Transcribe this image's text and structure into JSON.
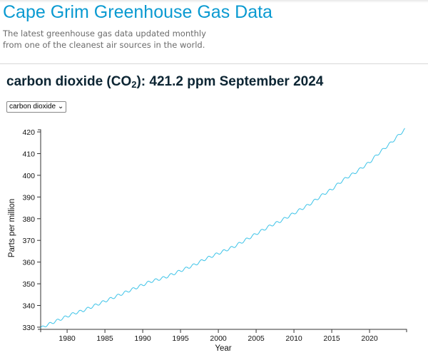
{
  "header": {
    "title": "Cape Grim Greenhouse Gas Data",
    "subtitle_line1": "The latest greenhouse gas data updated monthly",
    "subtitle_line2": "from one of the cleanest air sources in the world."
  },
  "summary": {
    "gas_name": "carbon dioxide (CO",
    "subscript": "2",
    "rest": "): 421.2 ppm September 2024"
  },
  "gas_select": {
    "selected": "carbon dioxide",
    "icon": "chevron-down-icon"
  },
  "colors": {
    "line": "#3cc3e8",
    "title": "#0a9ad1",
    "heading": "#0c2533"
  },
  "chart_data": {
    "type": "line",
    "xlabel": "Year",
    "ylabel": "Parts per million",
    "xlim": [
      1976.5,
      2024.9
    ],
    "ylim": [
      329,
      421
    ],
    "xticks": [
      1980,
      1985,
      1990,
      1995,
      2000,
      2005,
      2010,
      2015,
      2020
    ],
    "yticks": [
      330,
      340,
      350,
      360,
      370,
      380,
      390,
      400,
      410,
      420
    ],
    "grid": false,
    "seasonal_amplitude_ppm": 0.6,
    "x": [
      1976.5,
      1977,
      1978,
      1979,
      1980,
      1981,
      1982,
      1983,
      1984,
      1985,
      1986,
      1987,
      1988,
      1989,
      1990,
      1991,
      1992,
      1993,
      1994,
      1995,
      1996,
      1997,
      1998,
      1999,
      2000,
      2001,
      2002,
      2003,
      2004,
      2005,
      2006,
      2007,
      2008,
      2009,
      2010,
      2011,
      2012,
      2013,
      2014,
      2015,
      2016,
      2017,
      2018,
      2019,
      2020,
      2021,
      2022,
      2023,
      2024,
      2024.7
    ],
    "y": [
      329.5,
      330.5,
      332,
      333.5,
      335,
      336.5,
      337.5,
      339,
      340.5,
      342,
      343.5,
      345,
      346.5,
      348,
      349.5,
      351,
      352,
      353,
      354.5,
      356,
      357.5,
      359,
      361,
      362.5,
      364,
      365.5,
      367,
      369,
      371,
      373,
      375,
      377,
      378.5,
      380.5,
      382.5,
      384.5,
      386.5,
      389,
      391.5,
      393.5,
      396.5,
      399,
      401,
      403.5,
      406,
      409.5,
      412.5,
      415.5,
      419,
      421.2
    ]
  }
}
